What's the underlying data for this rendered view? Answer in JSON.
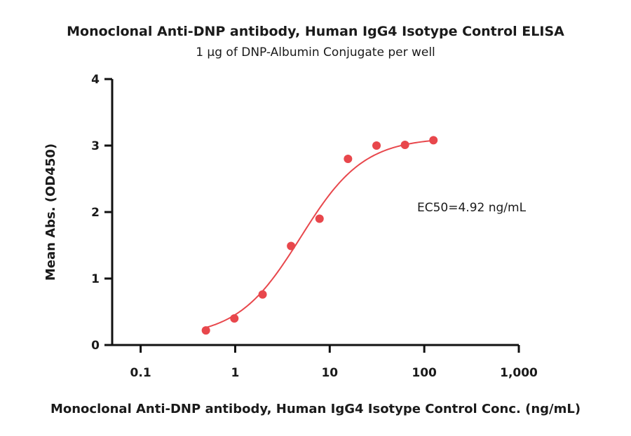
{
  "chart_data": {
    "type": "scatter",
    "title": "Monoclonal Anti-DNP antibody, Human IgG4 Isotype Control ELISA",
    "subtitle": "1 µg of DNP-Albumin Conjugate per well",
    "xlabel": "Monoclonal Anti-DNP antibody, Human IgG4 Isotype Control Conc. (ng/mL)",
    "ylabel": "Mean Abs. (OD450)",
    "xscale": "log",
    "xlim": [
      0.05,
      1000
    ],
    "ylim": [
      0,
      4
    ],
    "x_ticks": [
      0.1,
      1,
      10,
      100,
      1000
    ],
    "x_tick_labels": [
      "0.1",
      "1",
      "10",
      "100",
      "1,000"
    ],
    "y_ticks": [
      0,
      1,
      2,
      3,
      4
    ],
    "y_tick_labels": [
      "0",
      "1",
      "2",
      "3",
      "4"
    ],
    "color": "#e8474c",
    "series": [
      {
        "x": [
          0.49,
          0.98,
          1.95,
          3.9,
          7.8,
          15.6,
          31.25,
          62.5,
          125
        ],
        "y": [
          0.22,
          0.4,
          0.76,
          1.49,
          1.9,
          2.8,
          3.0,
          3.01,
          3.08
        ]
      }
    ],
    "fit": {
      "model": "4PL",
      "bottom": 0.12,
      "top": 3.12,
      "ec50": 4.92,
      "hill": 1.3,
      "x_range": [
        0.49,
        125
      ]
    },
    "annotation": "EC50=4.92 ng/mL",
    "grid": false,
    "legend": "none"
  }
}
